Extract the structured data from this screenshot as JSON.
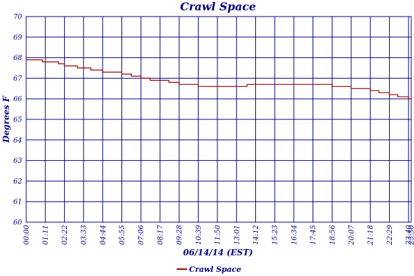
{
  "chart_data": {
    "type": "line",
    "title": "Crawl Space",
    "xlabel": "06/14/14 (EST)",
    "ylabel": "Degrees F",
    "ylim": [
      60,
      70
    ],
    "yticks": [
      60,
      61,
      62,
      63,
      64,
      65,
      66,
      67,
      68,
      69,
      70
    ],
    "xlim": [
      "00:00",
      "23:50"
    ],
    "xticks": [
      "00:00",
      "01:11",
      "02:22",
      "03:33",
      "04:44",
      "05:55",
      "07:06",
      "08:17",
      "09:28",
      "10:39",
      "11:50",
      "13:01",
      "14:12",
      "15:23",
      "16:34",
      "17:45",
      "18:56",
      "20:07",
      "21:18",
      "22:29",
      "23:40",
      "23:50"
    ],
    "grid": true,
    "legend": "bottom",
    "colors": {
      "series": "#990000",
      "axis": "#000080",
      "grid": "#000080"
    },
    "series": [
      {
        "name": "Crawl Space",
        "x": [
          "00:00",
          "00:30",
          "01:00",
          "01:11",
          "01:30",
          "02:00",
          "02:22",
          "02:45",
          "03:10",
          "03:33",
          "04:00",
          "04:44",
          "05:20",
          "05:55",
          "06:30",
          "07:06",
          "07:40",
          "08:17",
          "08:50",
          "09:28",
          "10:00",
          "10:39",
          "11:15",
          "11:50",
          "12:25",
          "13:01",
          "13:40",
          "14:12",
          "14:50",
          "15:23",
          "16:00",
          "16:34",
          "17:10",
          "17:45",
          "18:20",
          "18:56",
          "19:30",
          "20:07",
          "20:40",
          "21:18",
          "21:50",
          "22:29",
          "23:00",
          "23:40",
          "23:50"
        ],
        "y": [
          67.9,
          67.9,
          67.8,
          67.8,
          67.8,
          67.7,
          67.6,
          67.6,
          67.5,
          67.5,
          67.4,
          67.3,
          67.3,
          67.2,
          67.1,
          67.0,
          66.9,
          66.9,
          66.8,
          66.7,
          66.7,
          66.6,
          66.6,
          66.6,
          66.6,
          66.6,
          66.7,
          66.7,
          66.7,
          66.7,
          66.7,
          66.7,
          66.7,
          66.7,
          66.7,
          66.6,
          66.6,
          66.5,
          66.5,
          66.4,
          66.3,
          66.2,
          66.1,
          66.0,
          66.0
        ]
      }
    ]
  }
}
